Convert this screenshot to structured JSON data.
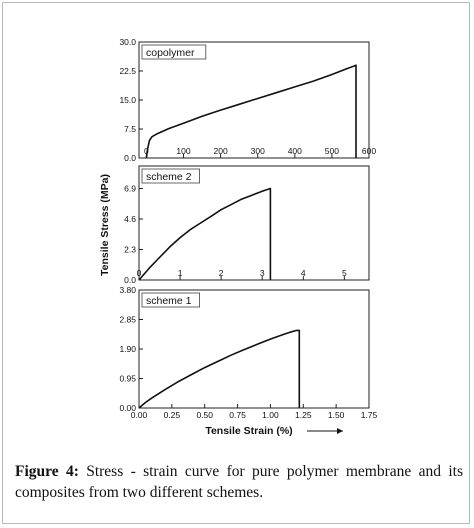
{
  "figure": {
    "caption_label": "Figure 4:",
    "caption_text": " Stress - strain curve for pure polymer membrane and its composites from two different schemes."
  },
  "chart_data": [
    {
      "type": "line",
      "panel_label": "copolymer",
      "ylabel": "Tensile Stress (MPa)",
      "xlim": [
        -20,
        600
      ],
      "ylim": [
        0,
        30
      ],
      "x_ticks": [
        "0",
        "100",
        "200",
        "300",
        "400",
        "500",
        "600"
      ],
      "y_ticks": [
        "0.0",
        "7.5",
        "15.0",
        "22.5",
        "30.0"
      ],
      "series": [
        {
          "x": [
            0,
            3,
            8,
            15,
            30,
            60,
            100,
            150,
            200,
            250,
            300,
            350,
            400,
            450,
            500,
            540,
            560,
            565,
            565
          ],
          "y": [
            0,
            2.2,
            4.5,
            5.5,
            6.3,
            7.6,
            9.0,
            10.8,
            12.4,
            13.9,
            15.4,
            16.9,
            18.4,
            19.9,
            21.6,
            23.1,
            23.8,
            24.0,
            0
          ]
        }
      ]
    },
    {
      "type": "line",
      "panel_label": "scheme 2",
      "xlim": [
        0,
        5.6
      ],
      "ylim": [
        0,
        8.6
      ],
      "x_ticks": [
        "0",
        "1",
        "2",
        "3",
        "4",
        "5"
      ],
      "y_ticks": [
        "0.0",
        "2.3",
        "4.6",
        "6.9"
      ],
      "series": [
        {
          "x": [
            0,
            0.25,
            0.5,
            0.75,
            1.0,
            1.25,
            1.5,
            1.75,
            2.0,
            2.25,
            2.5,
            2.75,
            3.0,
            3.1,
            3.2,
            3.2
          ],
          "y": [
            0,
            0.9,
            1.7,
            2.5,
            3.2,
            3.8,
            4.3,
            4.8,
            5.3,
            5.7,
            6.1,
            6.4,
            6.7,
            6.8,
            6.9,
            0
          ]
        }
      ]
    },
    {
      "type": "line",
      "panel_label": "scheme 1",
      "xlabel": "Tensile Strain (%)",
      "xlim": [
        0,
        1.75
      ],
      "ylim": [
        0,
        3.8
      ],
      "x_ticks": [
        "0.00",
        "0.25",
        "0.50",
        "0.75",
        "1.00",
        "1.25",
        "1.50",
        "1.75"
      ],
      "y_ticks": [
        "0.00",
        "0.95",
        "1.90",
        "2.85",
        "3.80"
      ],
      "series": [
        {
          "x": [
            0,
            0.05,
            0.1,
            0.2,
            0.3,
            0.4,
            0.5,
            0.6,
            0.7,
            0.8,
            0.9,
            1.0,
            1.1,
            1.15,
            1.2,
            1.22,
            1.22
          ],
          "y": [
            0,
            0.18,
            0.33,
            0.6,
            0.85,
            1.08,
            1.3,
            1.5,
            1.7,
            1.88,
            2.05,
            2.22,
            2.37,
            2.44,
            2.5,
            2.5,
            0
          ]
        }
      ]
    }
  ]
}
